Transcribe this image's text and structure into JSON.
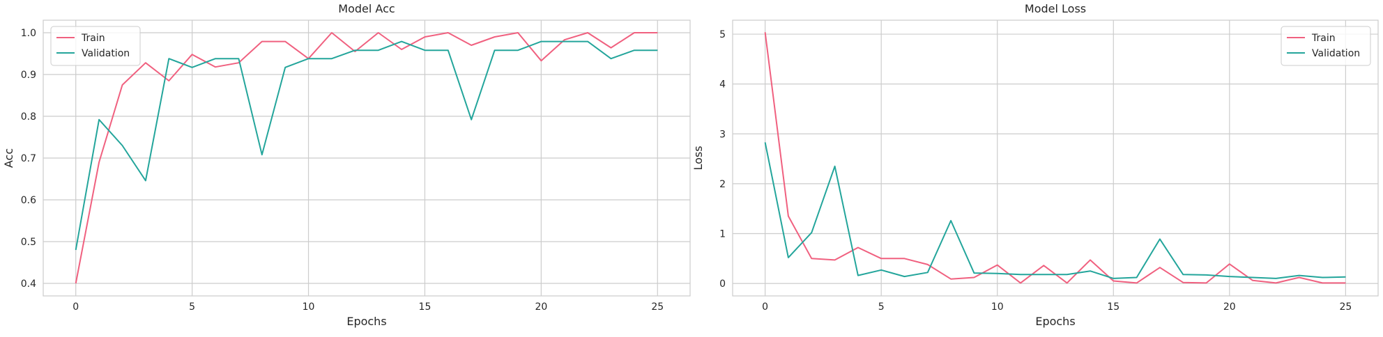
{
  "chart_data": [
    {
      "type": "line",
      "title": "Model Acc",
      "xlabel": "Epochs",
      "ylabel": "Acc",
      "xlim": [
        -1.4,
        26.4
      ],
      "ylim": [
        0.37,
        1.03
      ],
      "xticks": [
        0,
        5,
        10,
        15,
        20,
        25
      ],
      "yticks": [
        0.4,
        0.5,
        0.6,
        0.7,
        0.8,
        0.9,
        1.0
      ],
      "ytick_labels": [
        "0.4",
        "0.5",
        "0.6",
        "0.7",
        "0.8",
        "0.9",
        "1.0"
      ],
      "grid": true,
      "legend_position": "top-left",
      "x": [
        0,
        1,
        2,
        3,
        4,
        5,
        6,
        7,
        8,
        9,
        10,
        11,
        12,
        13,
        14,
        15,
        16,
        17,
        18,
        19,
        20,
        21,
        22,
        23,
        24,
        25
      ],
      "series": [
        {
          "name": "Train",
          "color": "#f0607f",
          "values": [
            0.4,
            0.69,
            0.875,
            0.928,
            0.885,
            0.948,
            0.918,
            0.928,
            0.979,
            0.979,
            0.938,
            1.0,
            0.955,
            1.0,
            0.96,
            0.99,
            1.0,
            0.97,
            0.99,
            1.0,
            0.933,
            0.983,
            1.0,
            0.964,
            1.0,
            1.0
          ]
        },
        {
          "name": "Validation",
          "color": "#23a59b",
          "values": [
            0.48,
            0.792,
            0.73,
            0.646,
            0.938,
            0.917,
            0.938,
            0.938,
            0.708,
            0.917,
            0.938,
            0.938,
            0.958,
            0.958,
            0.979,
            0.958,
            0.958,
            0.792,
            0.958,
            0.958,
            0.979,
            0.979,
            0.979,
            0.938,
            0.958,
            0.958
          ]
        }
      ]
    },
    {
      "type": "line",
      "title": "Model Loss",
      "xlabel": "Epochs",
      "ylabel": "Loss",
      "xlim": [
        -1.4,
        26.4
      ],
      "ylim": [
        -0.25,
        5.28
      ],
      "xticks": [
        0,
        5,
        10,
        15,
        20,
        25
      ],
      "yticks": [
        0,
        1,
        2,
        3,
        4,
        5
      ],
      "ytick_labels": [
        "0",
        "1",
        "2",
        "3",
        "4",
        "5"
      ],
      "grid": true,
      "legend_position": "top-right",
      "x": [
        0,
        1,
        2,
        3,
        4,
        5,
        6,
        7,
        8,
        9,
        10,
        11,
        12,
        13,
        14,
        15,
        16,
        17,
        18,
        19,
        20,
        21,
        22,
        23,
        24,
        25
      ],
      "series": [
        {
          "name": "Train",
          "color": "#f0607f",
          "values": [
            5.04,
            1.35,
            0.5,
            0.47,
            0.72,
            0.5,
            0.5,
            0.38,
            0.09,
            0.12,
            0.37,
            0.01,
            0.36,
            0.01,
            0.47,
            0.05,
            0.01,
            0.32,
            0.02,
            0.01,
            0.39,
            0.06,
            0.01,
            0.12,
            0.01,
            0.01
          ]
        },
        {
          "name": "Validation",
          "color": "#23a59b",
          "values": [
            2.83,
            0.52,
            1.02,
            2.35,
            0.16,
            0.27,
            0.14,
            0.22,
            1.26,
            0.21,
            0.2,
            0.18,
            0.18,
            0.18,
            0.25,
            0.1,
            0.12,
            0.89,
            0.18,
            0.17,
            0.14,
            0.12,
            0.1,
            0.16,
            0.12,
            0.13
          ]
        }
      ]
    }
  ]
}
